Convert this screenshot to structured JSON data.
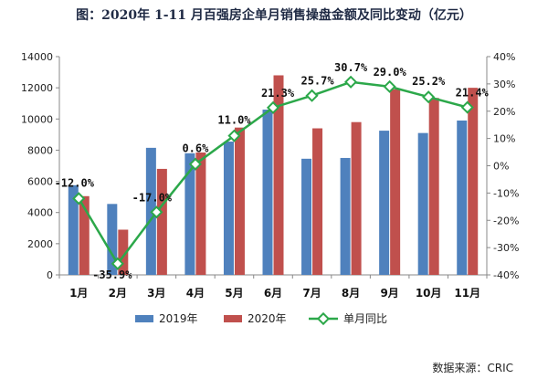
{
  "title": "图：2020年 1-11 月百强房企单月销售操盘金额及同比变动（亿元）",
  "source": "数据来源：CRIC",
  "colors": {
    "bar2019": "#4f81bd",
    "bar2020": "#c0504d",
    "line": "#2ca84a",
    "marker_fill": "#ffffff"
  },
  "chart_data": {
    "type": "bar",
    "categories": [
      "1月",
      "2月",
      "3月",
      "4月",
      "5月",
      "6月",
      "7月",
      "8月",
      "9月",
      "10月",
      "11月"
    ],
    "series": [
      {
        "name": "2019年",
        "type": "bar",
        "axis": "left",
        "values": [
          5750,
          4550,
          8150,
          7800,
          8550,
          10600,
          7450,
          7500,
          9250,
          9100,
          9900
        ]
      },
      {
        "name": "2020年",
        "type": "bar",
        "axis": "left",
        "values": [
          5050,
          2900,
          6800,
          7850,
          9450,
          12800,
          9400,
          9800,
          11900,
          11350,
          12000
        ]
      },
      {
        "name": "单月同比",
        "type": "line",
        "axis": "right",
        "values": [
          -12.0,
          -35.9,
          -17.0,
          0.6,
          11.0,
          21.3,
          25.7,
          30.7,
          29.0,
          25.2,
          21.4
        ],
        "labels": [
          "-12.0%",
          "-35.9%",
          "-17.0%",
          "0.6%",
          "11.0%",
          "21.3%",
          "25.7%",
          "30.7%",
          "29.0%",
          "25.2%",
          "21.4%"
        ]
      }
    ],
    "ylim_left": [
      0,
      14000
    ],
    "yticks_left": [
      "0",
      "2000",
      "4000",
      "6000",
      "8000",
      "10000",
      "12000",
      "14000"
    ],
    "ylim_right": [
      -40,
      40
    ],
    "yticks_right": [
      "-40%",
      "-30%",
      "-20%",
      "-10%",
      "0%",
      "10%",
      "20%",
      "30%",
      "40%"
    ],
    "grid": false,
    "legend_position": "bottom"
  }
}
